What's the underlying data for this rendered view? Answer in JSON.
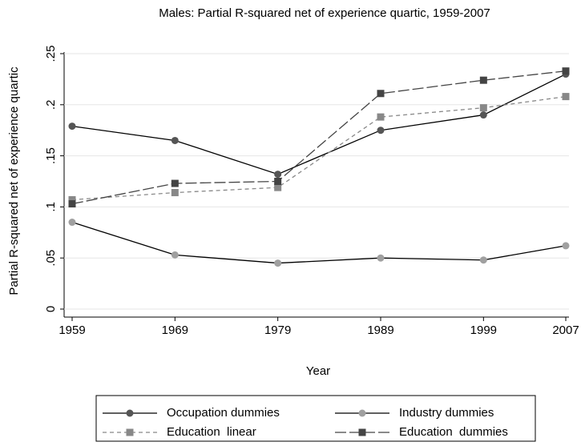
{
  "chart_data": {
    "type": "line",
    "title": "Males: Partial R-squared net of experience quartic, 1959-2007",
    "x_label": "Year",
    "y_label": "Partial R-squared net of experience quartic",
    "x": [
      1959,
      1969,
      1979,
      1989,
      1999,
      2007
    ],
    "xlim": [
      1959,
      2007
    ],
    "xticks": [
      1959,
      1969,
      1979,
      1989,
      1999,
      2007
    ],
    "ylim": [
      0,
      0.25
    ],
    "yticks": [
      0,
      {
        "value": 0.05,
        "label": ".05"
      },
      {
        "value": 0.1,
        "label": ".1"
      },
      {
        "value": 0.15,
        "label": ".15"
      },
      {
        "value": 0.2,
        "label": ".2"
      },
      {
        "value": 0.25,
        "label": ".25"
      }
    ],
    "grid": true,
    "series": [
      {
        "name": "Occupation dummies",
        "color": "#555555",
        "line_color": "#000000",
        "marker": "circle",
        "dash": "none",
        "values": [
          0.179,
          0.165,
          0.132,
          0.175,
          0.19,
          0.23
        ]
      },
      {
        "name": "Industry dummies",
        "color": "#a0a0a0",
        "line_color": "#000000",
        "marker": "circle",
        "dash": "none",
        "values": [
          0.085,
          0.053,
          0.045,
          0.05,
          0.048,
          0.062
        ]
      },
      {
        "name": "Education  linear",
        "color": "#888888",
        "line_color": "#888888",
        "marker": "square",
        "dash": "5 4",
        "values": [
          0.107,
          0.114,
          0.119,
          0.188,
          0.197,
          0.208
        ]
      },
      {
        "name": "Education  dummies",
        "color": "#444444",
        "line_color": "#444444",
        "marker": "square",
        "dash": "14 4",
        "values": [
          0.103,
          0.123,
          0.125,
          0.211,
          0.224,
          0.233
        ]
      }
    ]
  }
}
